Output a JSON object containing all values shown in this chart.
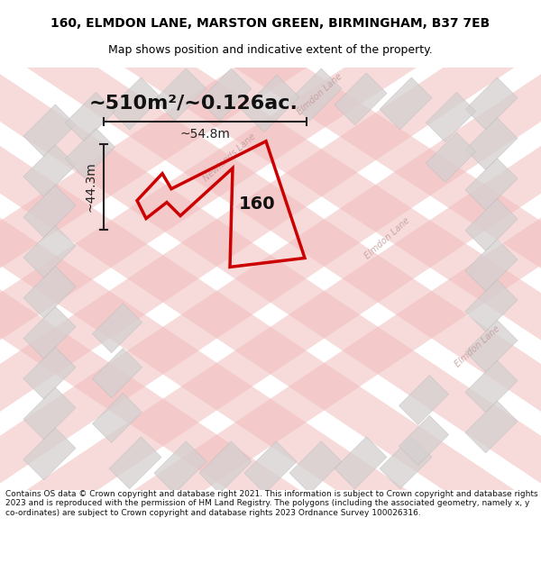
{
  "title_line1": "160, ELMDON LANE, MARSTON GREEN, BIRMINGHAM, B37 7EB",
  "title_line2": "Map shows position and indicative extent of the property.",
  "area_text": "~510m²/~0.126ac.",
  "label_160": "160",
  "dim_width": "~54.8m",
  "dim_height": "~44.3m",
  "footer_text": "Contains OS data © Crown copyright and database right 2021. This information is subject to Crown copyright and database rights 2023 and is reproduced with the permission of HM Land Registry. The polygons (including the associated geometry, namely x, y co-ordinates) are subject to Crown copyright and database rights 2023 Ordnance Survey 100026316.",
  "bg_color": "#f5f5f5",
  "map_bg": "#f0eeee",
  "road_color_light": "#f0b8b8",
  "road_color_dark": "#e8a0a0",
  "building_color": "#d8d4d4",
  "property_color": "#cc0000",
  "property_lw": 2.5,
  "dim_color": "#222222",
  "title_fontsize": 10,
  "subtitle_fontsize": 9,
  "area_fontsize": 16,
  "label_fontsize": 14,
  "dim_fontsize": 10,
  "footer_fontsize": 6.5
}
